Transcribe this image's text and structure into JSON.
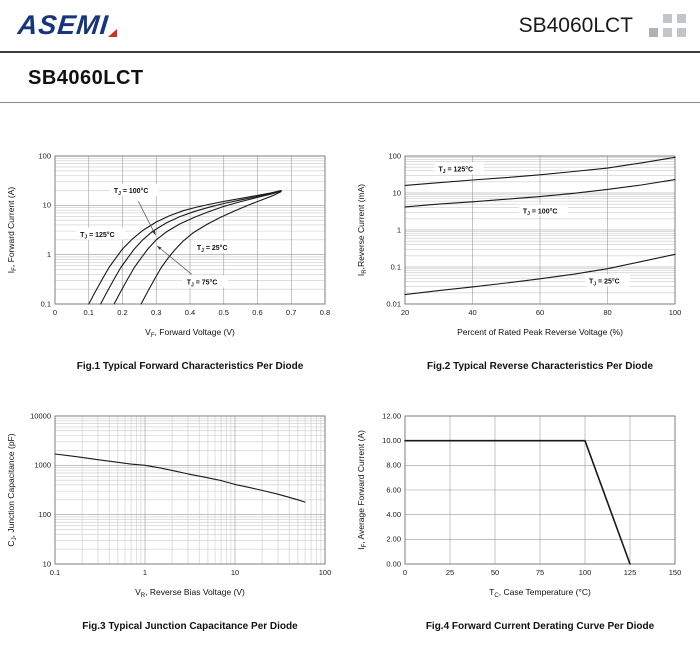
{
  "colors": {
    "brand_navy": "#17357e",
    "brand_red": "#cf2e26",
    "square_gray": "#c3c6c8",
    "square_gray_dark": "#aeb2b4",
    "grid_major": "#9c9c9c",
    "grid_minor": "#cccccc",
    "plot_border": "#7f7f7f",
    "curve": "#1a1a1a"
  },
  "header": {
    "logo_text": "ASEMI",
    "part_number": "SB4060LCT"
  },
  "page": {
    "title": "SB4060LCT"
  },
  "chart_data": [
    {
      "type": "line",
      "caption": "Fig.1 Typical Forward Characteristics Per Diode",
      "x_scale": "linear",
      "y_scale": "log",
      "xlim": [
        0,
        0.8
      ],
      "ylim": [
        0.1,
        100
      ],
      "grid": true,
      "legend_position": "inline-labels",
      "x_ticks": [
        {
          "v": 0,
          "l": "0"
        },
        {
          "v": 0.1,
          "l": "0.1"
        },
        {
          "v": 0.2,
          "l": "0.2"
        },
        {
          "v": 0.3,
          "l": "0.3"
        },
        {
          "v": 0.4,
          "l": "0.4"
        },
        {
          "v": 0.5,
          "l": "0.5"
        },
        {
          "v": 0.6,
          "l": "0.6"
        },
        {
          "v": 0.7,
          "l": "0.7"
        },
        {
          "v": 0.8,
          "l": "0.8"
        }
      ],
      "y_ticks": [
        {
          "v": 0.1,
          "l": "0.1"
        },
        {
          "v": 1,
          "l": "1"
        },
        {
          "v": 10,
          "l": "10"
        },
        {
          "v": 100,
          "l": "100"
        }
      ],
      "xlabel": [
        {
          "t": "V"
        },
        {
          "t": "F",
          "sub": true
        },
        {
          "t": ", Forward Voltage (V)"
        }
      ],
      "ylabel": [
        {
          "t": "I"
        },
        {
          "t": "F",
          "sub": true
        },
        {
          "t": ", Forward Current (A)"
        }
      ],
      "series": [
        {
          "name": "TJ = 125°C",
          "points": [
            [
              0.1,
              0.1
            ],
            [
              0.12,
              0.18
            ],
            [
              0.14,
              0.32
            ],
            [
              0.16,
              0.55
            ],
            [
              0.18,
              0.85
            ],
            [
              0.2,
              1.3
            ],
            [
              0.23,
              2.1
            ],
            [
              0.26,
              3.1
            ],
            [
              0.3,
              4.6
            ],
            [
              0.34,
              6.2
            ],
            [
              0.38,
              7.8
            ],
            [
              0.42,
              9.2
            ],
            [
              0.46,
              10.6
            ],
            [
              0.5,
              12.0
            ],
            [
              0.55,
              13.8
            ],
            [
              0.6,
              15.9
            ],
            [
              0.64,
              17.9
            ],
            [
              0.67,
              20.0
            ]
          ]
        },
        {
          "name": "TJ = 100°C",
          "points": [
            [
              0.135,
              0.1
            ],
            [
              0.155,
              0.18
            ],
            [
              0.175,
              0.32
            ],
            [
              0.195,
              0.55
            ],
            [
              0.215,
              0.85
            ],
            [
              0.235,
              1.3
            ],
            [
              0.26,
              2.0
            ],
            [
              0.29,
              3.0
            ],
            [
              0.33,
              4.4
            ],
            [
              0.37,
              5.9
            ],
            [
              0.41,
              7.4
            ],
            [
              0.45,
              8.9
            ],
            [
              0.5,
              10.9
            ],
            [
              0.55,
              12.9
            ],
            [
              0.6,
              15.2
            ],
            [
              0.64,
              17.4
            ],
            [
              0.67,
              19.7
            ]
          ]
        },
        {
          "name": "TJ = 75°C",
          "points": [
            [
              0.175,
              0.1
            ],
            [
              0.195,
              0.18
            ],
            [
              0.215,
              0.32
            ],
            [
              0.235,
              0.55
            ],
            [
              0.255,
              0.85
            ],
            [
              0.275,
              1.3
            ],
            [
              0.3,
              2.0
            ],
            [
              0.33,
              2.9
            ],
            [
              0.37,
              4.2
            ],
            [
              0.41,
              5.6
            ],
            [
              0.45,
              7.2
            ],
            [
              0.5,
              9.5
            ],
            [
              0.55,
              11.9
            ],
            [
              0.6,
              14.5
            ],
            [
              0.64,
              16.9
            ],
            [
              0.67,
              19.4
            ]
          ]
        },
        {
          "name": "TJ = 25°C",
          "points": [
            [
              0.255,
              0.1
            ],
            [
              0.275,
              0.18
            ],
            [
              0.295,
              0.32
            ],
            [
              0.315,
              0.55
            ],
            [
              0.335,
              0.85
            ],
            [
              0.355,
              1.25
            ],
            [
              0.38,
              1.9
            ],
            [
              0.41,
              2.8
            ],
            [
              0.45,
              4.1
            ],
            [
              0.49,
              5.7
            ],
            [
              0.53,
              7.6
            ],
            [
              0.57,
              9.9
            ],
            [
              0.61,
              12.7
            ],
            [
              0.645,
              15.7
            ],
            [
              0.67,
              19.0
            ]
          ]
        }
      ],
      "labels": [
        {
          "parts": [
            {
              "t": "T"
            },
            {
              "t": "J",
              "sub": true
            },
            {
              "t": " = 100°C"
            }
          ],
          "x": 0.235,
          "y": 20,
          "arrow": {
            "from": [
              0.247,
              12
            ],
            "to": [
              0.298,
              2.5
            ]
          }
        },
        {
          "parts": [
            {
              "t": "T"
            },
            {
              "t": "J",
              "sub": true
            },
            {
              "t": " = 125°C"
            }
          ],
          "x": 0.135,
          "y": 2.6
        },
        {
          "parts": [
            {
              "t": "T"
            },
            {
              "t": "J",
              "sub": true
            },
            {
              "t": " = 25°C"
            }
          ],
          "x": 0.475,
          "y": 1.4
        },
        {
          "parts": [
            {
              "t": "T"
            },
            {
              "t": "J",
              "sub": true
            },
            {
              "t": " = 75°C"
            }
          ],
          "x": 0.445,
          "y": 0.28,
          "arrow": {
            "from": [
              0.405,
              0.4
            ],
            "to": [
              0.303,
              1.5
            ]
          }
        }
      ]
    },
    {
      "type": "line",
      "caption": "Fig.2 Typical Reverse Characteristics Per Diode",
      "x_scale": "linear",
      "y_scale": "log",
      "xlim": [
        20,
        100
      ],
      "ylim": [
        0.01,
        100
      ],
      "grid": true,
      "legend_position": "inline-labels",
      "x_ticks": [
        {
          "v": 20,
          "l": "20"
        },
        {
          "v": 40,
          "l": "40"
        },
        {
          "v": 60,
          "l": "60"
        },
        {
          "v": 80,
          "l": "80"
        },
        {
          "v": 100,
          "l": "100"
        }
      ],
      "y_ticks": [
        {
          "v": 0.01,
          "l": "0.01"
        },
        {
          "v": 0.1,
          "l": "0.1"
        },
        {
          "v": 1,
          "l": "1"
        },
        {
          "v": 10,
          "l": "10"
        },
        {
          "v": 100,
          "l": "100"
        }
      ],
      "xlabel": [
        {
          "t": "Percent of Rated Peak Reverse Voltage (%)"
        }
      ],
      "ylabel": [
        {
          "t": "I"
        },
        {
          "t": "R",
          "sub": true
        },
        {
          "t": ",Reverse Current (mA)"
        }
      ],
      "series": [
        {
          "name": "TJ = 125°C",
          "points": [
            [
              20,
              16
            ],
            [
              30,
              19
            ],
            [
              40,
              22.5
            ],
            [
              50,
              26
            ],
            [
              60,
              31
            ],
            [
              70,
              38
            ],
            [
              80,
              47
            ],
            [
              90,
              65
            ],
            [
              100,
              92
            ]
          ]
        },
        {
          "name": "TJ = 100°C",
          "points": [
            [
              20,
              4.2
            ],
            [
              30,
              5.0
            ],
            [
              40,
              5.8
            ],
            [
              50,
              6.8
            ],
            [
              60,
              8.0
            ],
            [
              70,
              9.8
            ],
            [
              80,
              12.5
            ],
            [
              90,
              16.5
            ],
            [
              100,
              23
            ]
          ]
        },
        {
          "name": "TJ = 25°C",
          "points": [
            [
              20,
              0.018
            ],
            [
              30,
              0.023
            ],
            [
              40,
              0.029
            ],
            [
              50,
              0.037
            ],
            [
              60,
              0.048
            ],
            [
              70,
              0.064
            ],
            [
              80,
              0.09
            ],
            [
              90,
              0.14
            ],
            [
              100,
              0.22
            ]
          ]
        }
      ],
      "labels": [
        {
          "parts": [
            {
              "t": "T"
            },
            {
              "t": "J",
              "sub": true
            },
            {
              "t": " = 125°C"
            }
          ],
          "x": 36,
          "y": 45
        },
        {
          "parts": [
            {
              "t": "T"
            },
            {
              "t": "J",
              "sub": true
            },
            {
              "t": " = 100°C"
            }
          ],
          "x": 61,
          "y": 3.3
        },
        {
          "parts": [
            {
              "t": "T"
            },
            {
              "t": "J",
              "sub": true
            },
            {
              "t": " = 25°C"
            }
          ],
          "x": 80,
          "y": 0.042
        }
      ]
    },
    {
      "type": "line",
      "caption": "Fig.3 Typical Junction Capacitance Per Diode",
      "x_scale": "log",
      "y_scale": "log",
      "xlim": [
        0.1,
        100
      ],
      "ylim": [
        10,
        10000
      ],
      "grid": true,
      "legend_position": "none",
      "x_ticks": [
        {
          "v": 0.1,
          "l": "0.1"
        },
        {
          "v": 1,
          "l": "1"
        },
        {
          "v": 10,
          "l": "10"
        },
        {
          "v": 100,
          "l": "100"
        }
      ],
      "y_ticks": [
        {
          "v": 10,
          "l": "10"
        },
        {
          "v": 100,
          "l": "100"
        },
        {
          "v": 1000,
          "l": "1000"
        },
        {
          "v": 10000,
          "l": "10000"
        }
      ],
      "xlabel": [
        {
          "t": "V"
        },
        {
          "t": "R",
          "sub": true
        },
        {
          "t": ", Reverse Bias Voltage (V)"
        }
      ],
      "ylabel": [
        {
          "t": "C"
        },
        {
          "t": "J",
          "sub": true
        },
        {
          "t": ", Junction Capacitance (pF)"
        }
      ],
      "series": [
        {
          "name": "CJ",
          "points": [
            [
              0.1,
              1700
            ],
            [
              0.15,
              1550
            ],
            [
              0.2,
              1450
            ],
            [
              0.3,
              1300
            ],
            [
              0.5,
              1150
            ],
            [
              0.7,
              1060
            ],
            [
              1,
              1000
            ],
            [
              1.5,
              880
            ],
            [
              2,
              790
            ],
            [
              3,
              670
            ],
            [
              5,
              560
            ],
            [
              7,
              490
            ],
            [
              10,
              410
            ],
            [
              15,
              350
            ],
            [
              20,
              310
            ],
            [
              30,
              260
            ],
            [
              40,
              225
            ],
            [
              50,
              200
            ],
            [
              60,
              180
            ]
          ]
        }
      ],
      "labels": []
    },
    {
      "type": "line",
      "caption": "Fig.4 Forward Current Derating Curve Per Diode",
      "x_scale": "linear",
      "y_scale": "linear",
      "xlim": [
        0,
        150
      ],
      "ylim": [
        0,
        12
      ],
      "grid": true,
      "legend_position": "none",
      "stroke_width": 1.6,
      "x_ticks": [
        {
          "v": 0,
          "l": "0"
        },
        {
          "v": 25,
          "l": "25"
        },
        {
          "v": 50,
          "l": "50"
        },
        {
          "v": 75,
          "l": "75"
        },
        {
          "v": 100,
          "l": "100"
        },
        {
          "v": 125,
          "l": "125"
        },
        {
          "v": 150,
          "l": "150"
        }
      ],
      "y_ticks": [
        {
          "v": 0,
          "l": "0.00"
        },
        {
          "v": 2,
          "l": "2.00"
        },
        {
          "v": 4,
          "l": "4.00"
        },
        {
          "v": 6,
          "l": "6.00"
        },
        {
          "v": 8,
          "l": "8.00"
        },
        {
          "v": 10,
          "l": "10.00"
        },
        {
          "v": 12,
          "l": "12.00"
        }
      ],
      "xlabel": [
        {
          "t": "T"
        },
        {
          "t": "C",
          "sub": true
        },
        {
          "t": ", Case Temperature  (°C)"
        }
      ],
      "ylabel": [
        {
          "t": "I"
        },
        {
          "t": "F",
          "sub": true
        },
        {
          "t": ", Average Forward Current (A)"
        }
      ],
      "series": [
        {
          "name": "IF(AV)",
          "points": [
            [
              0,
              10
            ],
            [
              100,
              10
            ],
            [
              125,
              0
            ]
          ]
        }
      ],
      "labels": []
    }
  ]
}
